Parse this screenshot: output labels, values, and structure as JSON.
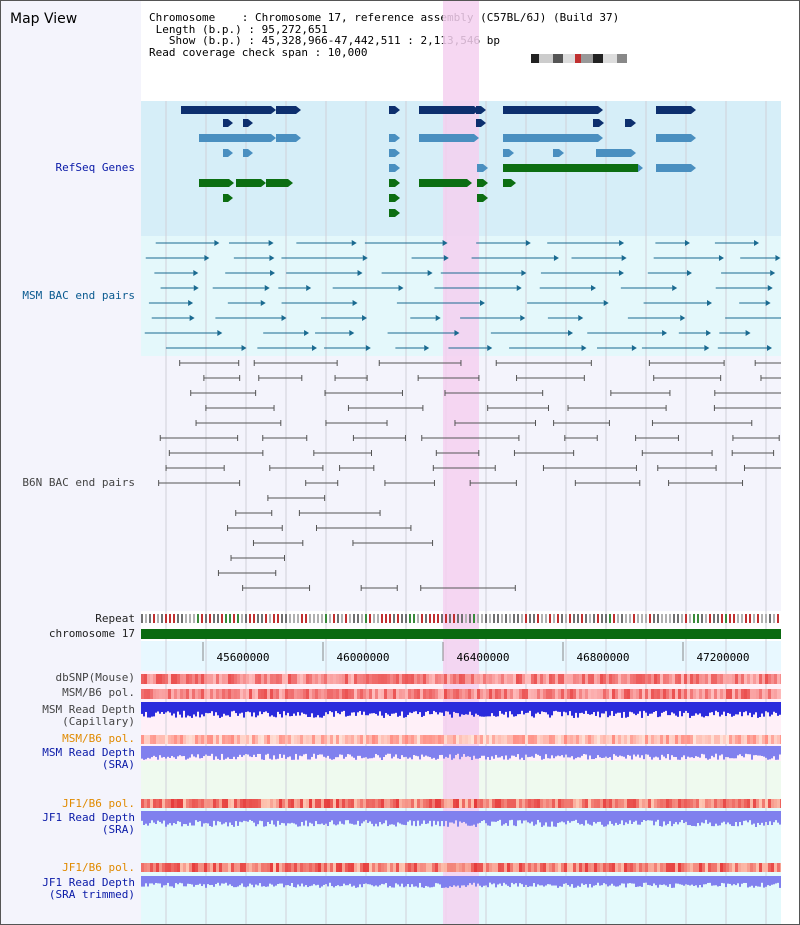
{
  "title": "Map View",
  "info": {
    "chromosome": "Chromosome    : Chromosome 17, reference assembly (C57BL/6J) (Build 37)",
    "length": " Length (b.p.) : 95,272,651",
    "show": "   Show (b.p.) : 45,328,966-47,442,511 : 2,113,546 bp",
    "coverage": "Read coverage check span : 10,000"
  },
  "tracks": {
    "refseq": "RefSeq Genes",
    "msm_bac": "MSM BAC end pairs",
    "b6n_bac": "B6N BAC end pairs",
    "repeat": "Repeat",
    "chromosome": "chromosome 17",
    "dbsnp": "dbSNP(Mouse)",
    "msm_b6_pol": "MSM/B6 pol.",
    "msm_depth_cap": "MSM Read Depth\n(Capillary)",
    "msm_b6_pol2": "MSM/B6 pol.",
    "msm_depth_sra": "MSM Read Depth\n(SRA)",
    "jf1_b6_pol": "JF1/B6 pol.",
    "jf1_depth_sra": "JF1 Read Depth\n(SRA)",
    "jf1_b6_pol2": "JF1/B6 pol.",
    "jf1_depth_trim": "JF1 Read Depth\n(SRA trimmed)"
  },
  "ruler": [
    "45600000",
    "46000000",
    "46400000",
    "46800000",
    "47200000"
  ],
  "colors": {
    "refseq_dark": "#0d2f6e",
    "refseq_mid": "#4a8fc0",
    "refseq_green": "#0c6e12",
    "bac_teal": "#1a6a90",
    "bac_gray": "#555555",
    "highlight": "#f5d0f0",
    "chrom_green": "#0a6a10",
    "depth_blue": "#2b2bdc",
    "depth_light": "#8080ee"
  }
}
